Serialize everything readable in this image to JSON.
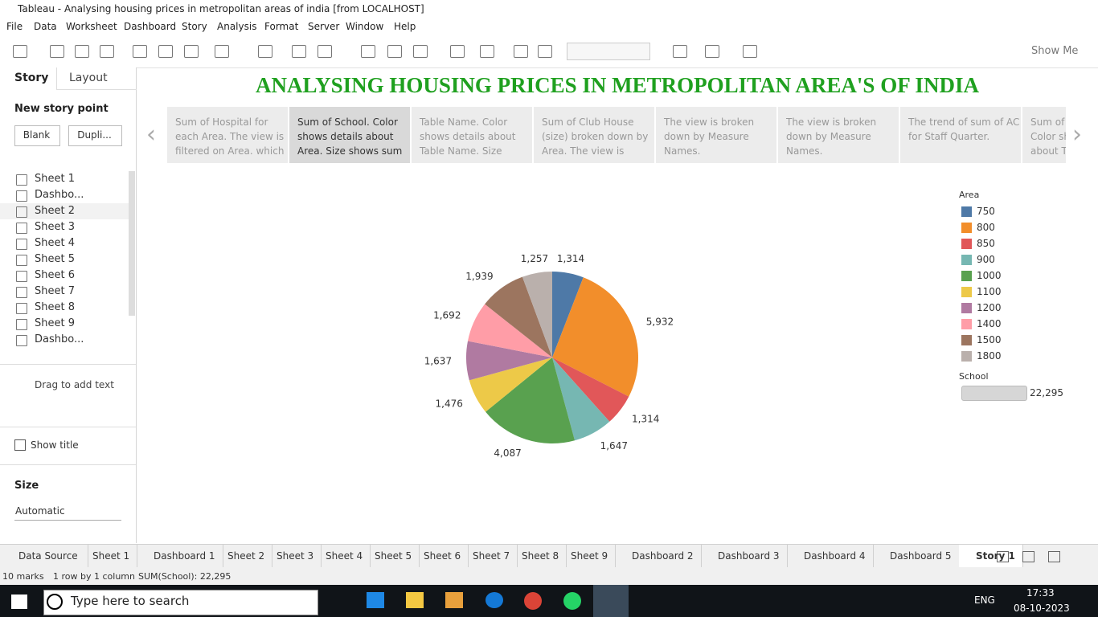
{
  "window": {
    "title": "Tableau - Analysing housing prices in metropolitan areas of india [from LOCALHOST]"
  },
  "menu": [
    "File",
    "Data",
    "Worksheet",
    "Dashboard",
    "Story",
    "Analysis",
    "Format",
    "Server",
    "Window",
    "Help"
  ],
  "toolbar": {
    "show_me": "Show Me"
  },
  "sidebar": {
    "tabs": [
      "Story",
      "Layout"
    ],
    "new_story_point": "New story point",
    "buttons": [
      "Blank",
      "Dupli..."
    ],
    "sheets": [
      "Sheet 1",
      "Dashbo...",
      "Sheet 2",
      "Sheet 3",
      "Sheet 4",
      "Sheet 5",
      "Sheet 6",
      "Sheet 7",
      "Sheet 8",
      "Sheet 9",
      "Dashbo..."
    ],
    "drag_text": "Drag to add text",
    "show_title": "Show title",
    "size_label": "Size",
    "size_value": "Automatic"
  },
  "story": {
    "title": "ANALYSING HOUSING PRICES IN METROPOLITAN AREA'S OF INDIA",
    "points": [
      {
        "lines": [
          "Sum of Hospital for",
          "each Area. The view is",
          "filtered on Area. which"
        ]
      },
      {
        "lines": [
          "Sum of School.  Color",
          "shows details about",
          "Area.  Size shows sum"
        ]
      },
      {
        "lines": [
          "Table Name.  Color",
          "shows details about",
          "Table Name.  Size"
        ]
      },
      {
        "lines": [
          "Sum of Club House",
          "(size) broken down by",
          "Area. The view is"
        ]
      },
      {
        "lines": [
          "The view is broken",
          "down by Measure",
          "Names."
        ]
      },
      {
        "lines": [
          "The view is broken",
          "down by Measure",
          "Names."
        ]
      },
      {
        "lines": [
          "The trend of sum of AC",
          "for Staff Quarter."
        ]
      },
      {
        "lines": [
          "Sum of",
          "Color sh",
          "about Ta"
        ]
      }
    ]
  },
  "chart_data": {
    "type": "pie",
    "legend_title": "Area",
    "categories": [
      "750",
      "800",
      "850",
      "900",
      "1000",
      "1100",
      "1200",
      "1400",
      "1500",
      "1800"
    ],
    "values": [
      1314,
      5932,
      1314,
      1647,
      4087,
      1476,
      1637,
      1692,
      1939,
      1257
    ],
    "value_labels": [
      "1,314",
      "5,932",
      "1,314",
      "1,647",
      "4,087",
      "1,476",
      "1,637",
      "1,692",
      "1,939",
      "1,257"
    ],
    "colors": [
      "#4e79a7",
      "#f28e2b",
      "#e15759",
      "#76b7b2",
      "#59a14f",
      "#edc948",
      "#b07aa1",
      "#ff9da7",
      "#9c755f",
      "#bab0ac"
    ],
    "size_legend": {
      "title": "School",
      "label": "22,295"
    }
  },
  "tabs": [
    "Data Source",
    "Sheet 1",
    "Dashboard 1",
    "Sheet 2",
    "Sheet 3",
    "Sheet 4",
    "Sheet 5",
    "Sheet 6",
    "Sheet 7",
    "Sheet 8",
    "Sheet 9",
    "Dashboard 2",
    "Dashboard 3",
    "Dashboard 4",
    "Dashboard 5",
    "Story 1"
  ],
  "status": [
    "10 marks",
    "1 row by 1 column",
    "SUM(School): 22,295"
  ],
  "taskbar": {
    "search": "Type here to search",
    "language": "ENG",
    "time": "17:33",
    "date": "08-10-2023"
  }
}
